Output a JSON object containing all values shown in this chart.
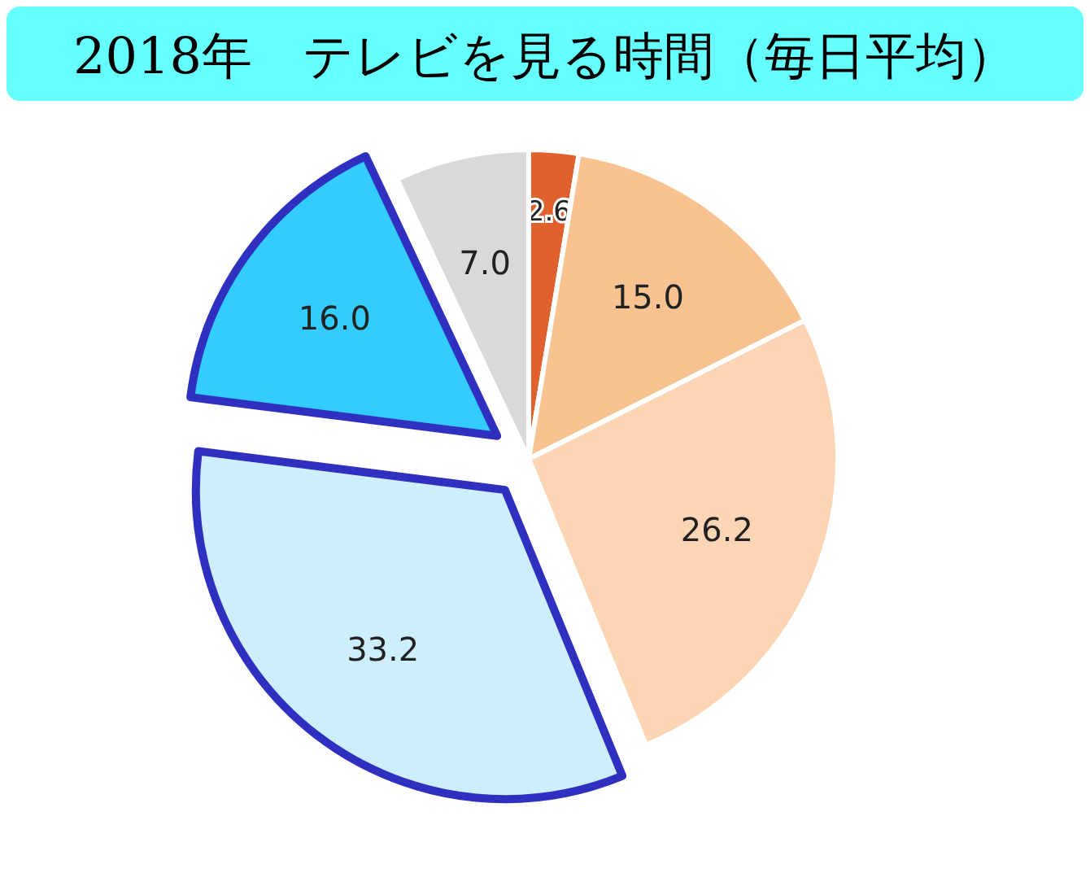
{
  "chart_data": {
    "type": "pie",
    "title": "2018年　テレビを見る時間（毎日平均）",
    "categories": [
      null,
      null,
      null,
      null,
      null,
      null
    ],
    "values": [
      2.6,
      15.0,
      26.2,
      33.2,
      16.0,
      7.0
    ],
    "value_labels": [
      "2.6",
      "15.0",
      "26.2",
      "33.2",
      "16.0",
      "7.0"
    ],
    "colors": [
      "#e0602e",
      "#f9c391",
      "#fcd5b4",
      "#cdeefd",
      "#33ccff",
      "#d9d9d9"
    ]
  }
}
